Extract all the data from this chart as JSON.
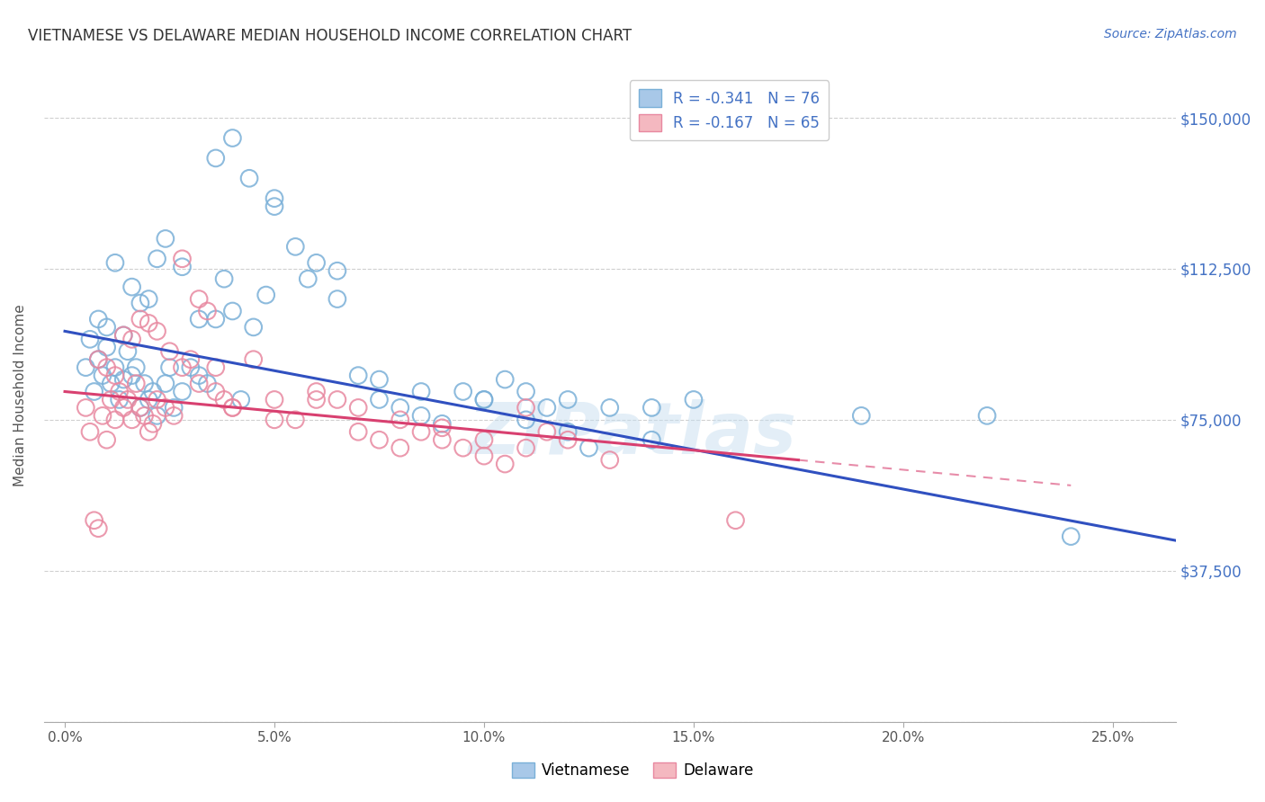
{
  "title": "VIETNAMESE VS DELAWARE MEDIAN HOUSEHOLD INCOME CORRELATION CHART",
  "source": "Source: ZipAtlas.com",
  "ylabel": "Median Household Income",
  "xlabel_ticks": [
    "0.0%",
    "5.0%",
    "10.0%",
    "15.0%",
    "20.0%",
    "25.0%"
  ],
  "xlabel_vals": [
    0.0,
    0.05,
    0.1,
    0.15,
    0.2,
    0.25
  ],
  "yticks_vals": [
    0,
    37500,
    75000,
    112500,
    150000
  ],
  "yticks_labels": [
    "",
    "$37,500",
    "$75,000",
    "$112,500",
    "$150,000"
  ],
  "xlim": [
    -0.005,
    0.265
  ],
  "ylim": [
    15000,
    162000
  ],
  "blue_color": "#a8c8e8",
  "pink_color": "#f4b8c0",
  "blue_edge": "#7ab0d8",
  "pink_edge": "#e888a0",
  "line_blue": "#3050c0",
  "line_pink": "#d84070",
  "legend_R1": "R = -0.341",
  "legend_N1": "N = 76",
  "legend_R2": "R = -0.167",
  "legend_N2": "N = 65",
  "watermark": "ZIPatlas",
  "blue_line_x0": 0.0,
  "blue_line_x1": 0.265,
  "blue_line_y0": 97000,
  "blue_line_y1": 45000,
  "pink_line_x0": 0.0,
  "pink_line_x1": 0.175,
  "pink_line_y0": 82000,
  "pink_line_y1": 65000,
  "blue_scatter_x": [
    0.005,
    0.006,
    0.007,
    0.008,
    0.009,
    0.01,
    0.011,
    0.012,
    0.013,
    0.014,
    0.015,
    0.016,
    0.017,
    0.018,
    0.019,
    0.02,
    0.021,
    0.022,
    0.024,
    0.025,
    0.026,
    0.028,
    0.03,
    0.032,
    0.034,
    0.036,
    0.038,
    0.04,
    0.042,
    0.045,
    0.048,
    0.05,
    0.055,
    0.06,
    0.065,
    0.07,
    0.075,
    0.08,
    0.085,
    0.09,
    0.095,
    0.1,
    0.105,
    0.11,
    0.115,
    0.12,
    0.125,
    0.13,
    0.14,
    0.15,
    0.008,
    0.01,
    0.012,
    0.014,
    0.016,
    0.018,
    0.02,
    0.022,
    0.024,
    0.028,
    0.032,
    0.036,
    0.04,
    0.044,
    0.05,
    0.058,
    0.065,
    0.075,
    0.085,
    0.1,
    0.11,
    0.12,
    0.14,
    0.19,
    0.22,
    0.24
  ],
  "blue_scatter_y": [
    88000,
    95000,
    82000,
    90000,
    86000,
    93000,
    84000,
    88000,
    80000,
    85000,
    92000,
    86000,
    88000,
    78000,
    84000,
    80000,
    82000,
    76000,
    84000,
    88000,
    78000,
    82000,
    88000,
    86000,
    84000,
    100000,
    110000,
    102000,
    80000,
    98000,
    106000,
    130000,
    118000,
    114000,
    112000,
    86000,
    80000,
    78000,
    76000,
    74000,
    82000,
    80000,
    85000,
    82000,
    78000,
    80000,
    68000,
    78000,
    78000,
    80000,
    100000,
    98000,
    114000,
    96000,
    108000,
    104000,
    105000,
    115000,
    120000,
    113000,
    100000,
    140000,
    145000,
    135000,
    128000,
    110000,
    105000,
    85000,
    82000,
    80000,
    75000,
    72000,
    70000,
    76000,
    76000,
    46000
  ],
  "pink_scatter_x": [
    0.005,
    0.006,
    0.007,
    0.008,
    0.009,
    0.01,
    0.011,
    0.012,
    0.013,
    0.014,
    0.015,
    0.016,
    0.017,
    0.018,
    0.019,
    0.02,
    0.021,
    0.022,
    0.024,
    0.026,
    0.028,
    0.03,
    0.032,
    0.034,
    0.036,
    0.038,
    0.04,
    0.045,
    0.05,
    0.055,
    0.06,
    0.065,
    0.07,
    0.075,
    0.08,
    0.085,
    0.09,
    0.095,
    0.1,
    0.105,
    0.11,
    0.115,
    0.12,
    0.008,
    0.01,
    0.012,
    0.014,
    0.016,
    0.018,
    0.02,
    0.022,
    0.025,
    0.028,
    0.032,
    0.036,
    0.04,
    0.05,
    0.06,
    0.07,
    0.08,
    0.09,
    0.1,
    0.11,
    0.13,
    0.16
  ],
  "pink_scatter_y": [
    78000,
    72000,
    50000,
    48000,
    76000,
    70000,
    80000,
    75000,
    82000,
    78000,
    80000,
    75000,
    84000,
    78000,
    76000,
    72000,
    74000,
    80000,
    78000,
    76000,
    115000,
    90000,
    105000,
    102000,
    88000,
    80000,
    78000,
    90000,
    80000,
    75000,
    82000,
    80000,
    72000,
    70000,
    68000,
    72000,
    70000,
    68000,
    66000,
    64000,
    78000,
    72000,
    70000,
    90000,
    88000,
    86000,
    96000,
    95000,
    100000,
    99000,
    97000,
    92000,
    88000,
    84000,
    82000,
    78000,
    75000,
    80000,
    78000,
    75000,
    73000,
    70000,
    68000,
    65000,
    50000
  ]
}
